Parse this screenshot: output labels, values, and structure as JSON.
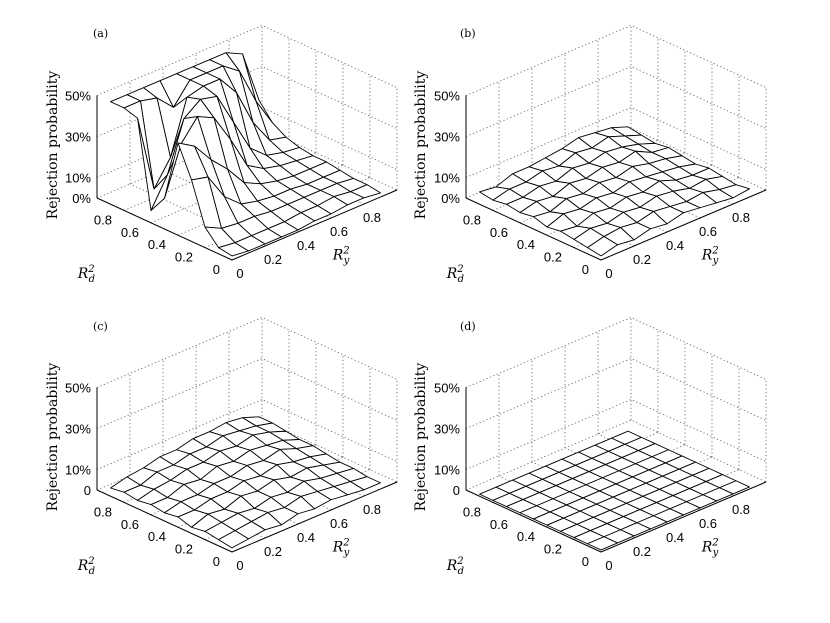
{
  "chart_data": [
    {
      "panel": "(a)",
      "type": "surface",
      "zlabel": "Rejection probability",
      "xlabel_main": "R",
      "xlabel_sub": "y",
      "xlabel_sup": "2",
      "ylabel_main": "R",
      "ylabel_sub": "d",
      "ylabel_sup": "2",
      "x_ticks": [
        "0",
        "0.2",
        "0.4",
        "0.6",
        "0.8"
      ],
      "y_ticks": [
        "0",
        "0.2",
        "0.4",
        "0.6",
        "0.8"
      ],
      "z_ticks": [
        "0%",
        "10%",
        "30%",
        "50%"
      ],
      "zlim": [
        0,
        50
      ],
      "grid_values": [
        0,
        0.1,
        0.2,
        0.3,
        0.4,
        0.5,
        0.6,
        0.7,
        0.8,
        0.9
      ],
      "z": [
        [
          2,
          1,
          1,
          1,
          1,
          2,
          2,
          3,
          3,
          2
        ],
        [
          3,
          2,
          2,
          2,
          2,
          3,
          3,
          4,
          3,
          3
        ],
        [
          10,
          6,
          5,
          5,
          4,
          4,
          4,
          4,
          4,
          3
        ],
        [
          30,
          28,
          15,
          8,
          6,
          5,
          5,
          4,
          4,
          4
        ],
        [
          45,
          40,
          30,
          22,
          12,
          8,
          6,
          5,
          5,
          5
        ],
        [
          15,
          38,
          48,
          44,
          30,
          14,
          9,
          7,
          6,
          5
        ],
        [
          6,
          20,
          44,
          50,
          48,
          32,
          16,
          9,
          7,
          6
        ],
        [
          48,
          10,
          22,
          48,
          50,
          50,
          40,
          22,
          10,
          8
        ],
        [
          50,
          50,
          48,
          40,
          50,
          50,
          50,
          44,
          26,
          12
        ],
        [
          50,
          50,
          50,
          50,
          50,
          50,
          50,
          50,
          46,
          20
        ]
      ]
    },
    {
      "panel": "(b)",
      "type": "surface",
      "zlabel": "Rejection probability",
      "xlabel_main": "R",
      "xlabel_sub": "y",
      "xlabel_sup": "2",
      "ylabel_main": "R",
      "ylabel_sub": "d",
      "ylabel_sup": "2",
      "x_ticks": [
        "0",
        "0.2",
        "0.4",
        "0.6",
        "0.8"
      ],
      "y_ticks": [
        "0",
        "0.2",
        "0.4",
        "0.6",
        "0.8"
      ],
      "z_ticks": [
        "0%",
        "10%",
        "30%",
        "50%"
      ],
      "zlim": [
        0,
        50
      ],
      "grid_values": [
        0,
        0.1,
        0.2,
        0.3,
        0.4,
        0.5,
        0.6,
        0.7,
        0.8,
        0.9
      ],
      "z": [
        [
          2,
          4,
          3,
          5,
          4,
          6,
          5,
          4,
          3,
          4
        ],
        [
          3,
          5,
          6,
          5,
          7,
          6,
          5,
          6,
          4,
          3
        ],
        [
          4,
          6,
          5,
          7,
          6,
          8,
          7,
          5,
          6,
          4
        ],
        [
          5,
          4,
          7,
          6,
          8,
          7,
          9,
          6,
          5,
          5
        ],
        [
          4,
          7,
          6,
          8,
          7,
          9,
          8,
          7,
          6,
          4
        ],
        [
          6,
          5,
          8,
          7,
          9,
          8,
          10,
          8,
          7,
          5
        ],
        [
          5,
          7,
          6,
          9,
          8,
          10,
          9,
          11,
          7,
          6
        ],
        [
          6,
          6,
          8,
          7,
          10,
          9,
          11,
          10,
          8,
          5
        ],
        [
          5,
          7,
          7,
          9,
          8,
          11,
          10,
          12,
          9,
          6
        ],
        [
          6,
          5,
          8,
          8,
          9,
          10,
          12,
          11,
          10,
          7
        ]
      ]
    },
    {
      "panel": "(c)",
      "type": "surface",
      "zlabel": "Rejection probability",
      "xlabel_main": "R",
      "xlabel_sub": "y",
      "xlabel_sup": "2",
      "ylabel_main": "R",
      "ylabel_sub": "d",
      "ylabel_sup": "2",
      "x_ticks": [
        "0",
        "0.2",
        "0.4",
        "0.6",
        "0.8"
      ],
      "y_ticks": [
        "0",
        "0.2",
        "0.4",
        "0.6",
        "0.8"
      ],
      "z_ticks": [
        "0",
        "10%",
        "30%",
        "50%"
      ],
      "zlim": [
        0,
        50
      ],
      "grid_values": [
        0,
        0.1,
        0.2,
        0.3,
        0.4,
        0.5,
        0.6,
        0.7,
        0.8,
        0.9
      ],
      "z": [
        [
          2,
          3,
          4,
          3,
          5,
          4,
          5,
          4,
          3,
          3
        ],
        [
          3,
          4,
          5,
          6,
          5,
          7,
          6,
          5,
          4,
          3
        ],
        [
          4,
          5,
          6,
          5,
          7,
          6,
          8,
          6,
          5,
          4
        ],
        [
          3,
          6,
          5,
          8,
          7,
          9,
          7,
          8,
          6,
          4
        ],
        [
          5,
          5,
          7,
          7,
          9,
          8,
          10,
          8,
          7,
          5
        ],
        [
          4,
          6,
          6,
          8,
          8,
          10,
          9,
          11,
          8,
          6
        ],
        [
          5,
          5,
          8,
          7,
          10,
          9,
          11,
          10,
          9,
          6
        ],
        [
          4,
          6,
          7,
          9,
          9,
          11,
          10,
          12,
          10,
          7
        ],
        [
          5,
          5,
          8,
          8,
          10,
          10,
          12,
          11,
          10,
          8
        ],
        [
          4,
          6,
          7,
          9,
          9,
          11,
          11,
          12,
          11,
          8
        ]
      ]
    },
    {
      "panel": "(d)",
      "type": "surface",
      "zlabel": "Rejection probability",
      "xlabel_main": "R",
      "xlabel_sub": "y",
      "xlabel_sup": "2",
      "ylabel_main": "R",
      "ylabel_sub": "d",
      "ylabel_sup": "2",
      "x_ticks": [
        "0",
        "0.2",
        "0.4",
        "0.6",
        "0.8"
      ],
      "y_ticks": [
        "0",
        "0.2",
        "0.4",
        "0.6",
        "0.8"
      ],
      "z_ticks": [
        "0",
        "10%",
        "30%",
        "50%"
      ],
      "zlim": [
        0,
        50
      ],
      "grid_values": [
        0,
        0.1,
        0.2,
        0.3,
        0.4,
        0.5,
        0.6,
        0.7,
        0.8,
        0.9
      ],
      "z": [
        [
          1,
          1,
          1,
          1,
          1,
          1,
          1,
          1,
          1,
          1
        ],
        [
          1,
          1,
          1,
          1,
          1,
          1,
          1,
          1,
          1,
          1
        ],
        [
          1,
          1,
          1,
          1,
          1,
          1,
          1,
          1,
          1,
          1
        ],
        [
          1,
          1,
          1,
          1,
          1,
          1,
          1,
          1,
          1,
          1
        ],
        [
          1,
          1,
          1,
          1,
          1,
          1,
          1,
          1,
          1,
          1
        ],
        [
          1,
          1,
          1,
          1,
          1,
          1,
          1,
          1,
          1,
          1
        ],
        [
          1,
          1,
          1,
          1,
          1,
          1,
          1,
          1,
          1,
          1
        ],
        [
          1,
          1,
          1,
          1,
          1,
          1,
          1,
          1,
          1,
          1
        ],
        [
          1,
          1,
          1,
          1,
          1,
          1,
          1,
          1,
          1,
          1
        ],
        [
          1,
          1,
          1,
          1,
          1,
          1,
          1,
          1,
          1,
          1
        ]
      ]
    }
  ]
}
